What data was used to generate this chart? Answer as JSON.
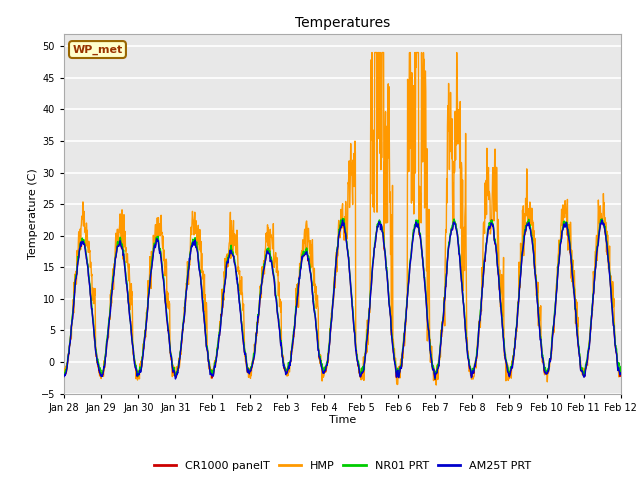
{
  "title": "Temperatures",
  "xlabel": "Time",
  "ylabel": "Temperature (C)",
  "ylim": [
    -5,
    52
  ],
  "yticks": [
    -5,
    0,
    5,
    10,
    15,
    20,
    25,
    30,
    35,
    40,
    45,
    50
  ],
  "x_labels": [
    "Jan 28",
    "Jan 29",
    "Jan 30",
    "Jan 31",
    "Feb 1",
    "Feb 2",
    "Feb 3",
    "Feb 4",
    "Feb 5",
    "Feb 6",
    "Feb 7",
    "Feb 8",
    "Feb 9",
    "Feb 10",
    "Feb 11",
    "Feb 12"
  ],
  "colors": {
    "CR1000": "#cc0000",
    "HMP": "#ff9900",
    "NR01": "#00cc00",
    "AM25T": "#0000cc"
  },
  "bg_color": "#e8e8e8",
  "grid_color": "#ffffff",
  "annotation_text": "WP_met",
  "annotation_bg": "#ffffcc",
  "annotation_border": "#996600",
  "annotation_text_color": "#993300",
  "legend_labels": [
    "CR1000 panelT",
    "HMP",
    "NR01 PRT",
    "AM25T PRT"
  ]
}
